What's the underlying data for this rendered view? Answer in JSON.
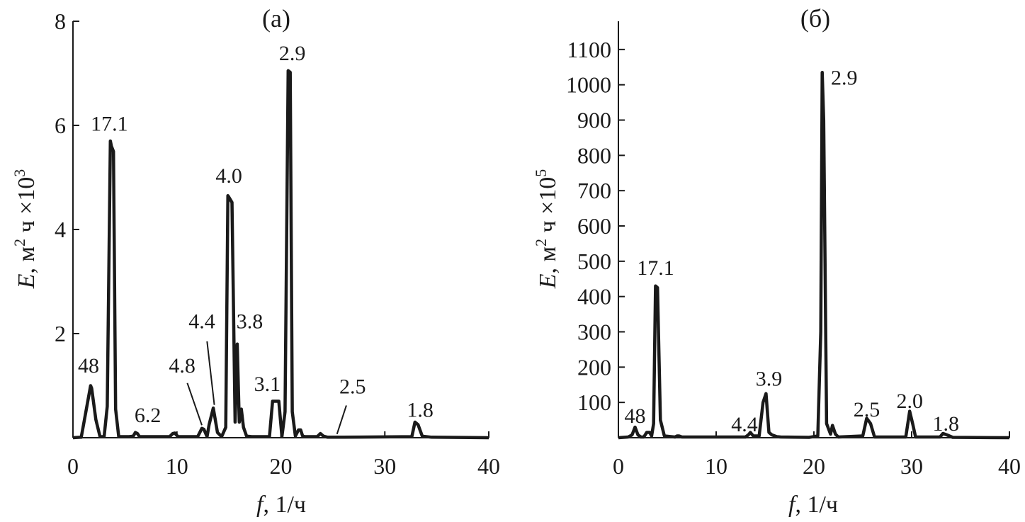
{
  "chart_data": [
    {
      "type": "line",
      "title": "(а)",
      "xlabel": {
        "var": "f",
        "rest": ", 1/ч"
      },
      "ylabel": {
        "var": "E",
        "unit": ", м",
        "unit_sup": "2",
        "unit2": " ч ×10",
        "unit2_sup": "3"
      },
      "xlim": [
        0,
        40
      ],
      "ylim": [
        0,
        8
      ],
      "xticks": [
        "0",
        "10",
        "20",
        "30",
        "40"
      ],
      "yticks": [
        "2",
        "4",
        "6",
        "8"
      ],
      "grid": false,
      "x": [
        0,
        0.8,
        1.2,
        1.7,
        1.8,
        2.2,
        2.6,
        3,
        3.3,
        3.6,
        3.7,
        3.9,
        4.1,
        4.4,
        4.8,
        5.4,
        5.8,
        6,
        6.2,
        6.4,
        6.8,
        9.3,
        9.6,
        9.8,
        10.1,
        10.4,
        12,
        12.4,
        12.6,
        12.9,
        13.1,
        13.5,
        13.9,
        14.3,
        14.7,
        14.9,
        15,
        15.3,
        15.6,
        15.8,
        16,
        16.2,
        16.4,
        16.7,
        17.2,
        18.9,
        19.2,
        19.4,
        19.8,
        20.1,
        20.4,
        20.7,
        20.9,
        21.1,
        21.4,
        21.7,
        21.9,
        22.1,
        22.3,
        22.6,
        23.5,
        23.8,
        24.1,
        24.5,
        26,
        32.6,
        32.9,
        33.2,
        33.6,
        34.5,
        40
      ],
      "y": [
        0,
        0.01,
        0.45,
        1.0,
        0.95,
        0.35,
        0.02,
        0.02,
        0.6,
        5.7,
        5.6,
        5.5,
        0.55,
        0.02,
        0.02,
        0.02,
        0.03,
        0.1,
        0.08,
        0.02,
        0.02,
        0.02,
        0.08,
        0.09,
        0.02,
        0.02,
        0.02,
        0.18,
        0.16,
        0.02,
        0.25,
        0.57,
        0.1,
        0.02,
        0.2,
        4.65,
        4.62,
        4.52,
        0.3,
        1.8,
        0.3,
        0.55,
        0.2,
        0.03,
        0.02,
        0.02,
        0.7,
        0.7,
        0.7,
        0.02,
        0.5,
        7.05,
        7.02,
        0.5,
        0.03,
        0.15,
        0.15,
        0.03,
        0.02,
        0.02,
        0.02,
        0.08,
        0.03,
        0.01,
        0.01,
        0.02,
        0.3,
        0.25,
        0.03,
        0.01,
        0
      ],
      "annotations": [
        {
          "text": "48",
          "x": 1.5,
          "y": 1.25
        },
        {
          "text": "17.1",
          "x": 3.5,
          "y": 5.9
        },
        {
          "text": "6.2",
          "x": 7.2,
          "y": 0.3
        },
        {
          "text": "4.8",
          "x": 10.5,
          "y": 1.25
        },
        {
          "text": "4.4",
          "x": 12.4,
          "y": 2.1
        },
        {
          "text": "4.0",
          "x": 15.0,
          "y": 4.9
        },
        {
          "text": "3.8",
          "x": 17.0,
          "y": 2.1
        },
        {
          "text": "3.1",
          "x": 18.7,
          "y": 0.9
        },
        {
          "text": "2.9",
          "x": 21.1,
          "y": 7.25
        },
        {
          "text": "2.5",
          "x": 26.9,
          "y": 0.85
        },
        {
          "text": "1.8",
          "x": 33.4,
          "y": 0.4
        }
      ],
      "leaders": [
        {
          "x1": 11.0,
          "y1": 1.05,
          "x2": 12.4,
          "y2": 0.24
        },
        {
          "x1": 12.9,
          "y1": 1.85,
          "x2": 13.6,
          "y2": 0.63
        },
        {
          "x1": 26.3,
          "y1": 0.62,
          "x2": 25.4,
          "y2": 0.07
        }
      ]
    },
    {
      "type": "line",
      "title": "(б)",
      "xlabel": {
        "var": "f",
        "rest": ", 1/ч"
      },
      "ylabel": {
        "var": "E",
        "unit": ", м",
        "unit_sup": "2",
        "unit2": " ч ×10",
        "unit2_sup": "5"
      },
      "xlim": [
        0,
        40
      ],
      "ylim": [
        0,
        1180
      ],
      "xticks": [
        "0",
        "10",
        "20",
        "30",
        "40"
      ],
      "yticks": [
        "100",
        "200",
        "300",
        "400",
        "500",
        "600",
        "700",
        "800",
        "900",
        "1000",
        "1100"
      ],
      "grid": false,
      "x": [
        0,
        1,
        1.4,
        1.7,
        2,
        2.3,
        2.6,
        2.9,
        3.2,
        3.4,
        3.6,
        3.8,
        4.0,
        4.3,
        4.7,
        5.4,
        5.8,
        6,
        6.2,
        6.5,
        13,
        13.3,
        13.5,
        13.8,
        14.4,
        14.8,
        15.1,
        15.4,
        15.7,
        16.2,
        16.6,
        19.5,
        20.4,
        20.7,
        20.85,
        21.0,
        21.3,
        21.7,
        21.9,
        22.2,
        22.5,
        25.0,
        25.4,
        25.8,
        26.2,
        29.4,
        29.8,
        30.1,
        30.4,
        32.9,
        33.2,
        33.6,
        34.2,
        40
      ],
      "y": [
        0,
        2,
        8,
        30,
        8,
        2,
        2,
        15,
        15,
        5,
        40,
        430,
        425,
        50,
        5,
        3,
        2,
        5,
        5,
        2,
        2,
        8,
        15,
        5,
        5,
        100,
        125,
        15,
        8,
        3,
        2,
        1,
        5,
        300,
        1035,
        900,
        40,
        10,
        35,
        10,
        2,
        5,
        55,
        40,
        2,
        2,
        75,
        40,
        2,
        2,
        12,
        8,
        1,
        0
      ],
      "annotations": [
        {
          "text": "48",
          "x": 1.7,
          "y": 42
        },
        {
          "text": "17.1",
          "x": 3.8,
          "y": 462
        },
        {
          "text": "4.4",
          "x": 12.9,
          "y": 18
        },
        {
          "text": "3.9",
          "x": 15.4,
          "y": 148
        },
        {
          "text": "2.9",
          "x": 23.1,
          "y": 1000
        },
        {
          "text": "2.5",
          "x": 25.4,
          "y": 60
        },
        {
          "text": "2.0",
          "x": 29.8,
          "y": 84
        },
        {
          "text": "1.8",
          "x": 33.5,
          "y": 20
        }
      ],
      "leaders": []
    }
  ]
}
